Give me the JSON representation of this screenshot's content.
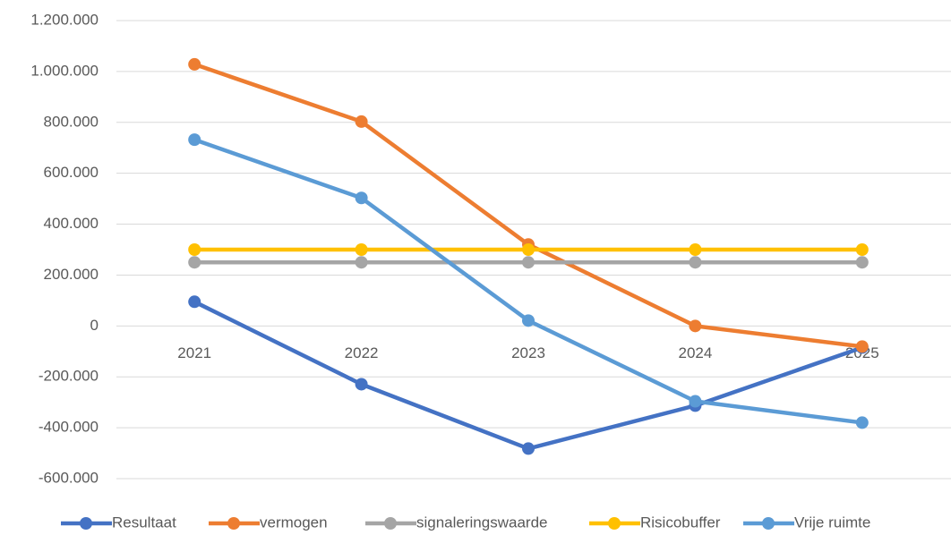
{
  "chart_data": {
    "type": "line",
    "categories": [
      "2021",
      "2022",
      "2023",
      "2024",
      "2025"
    ],
    "series": [
      {
        "name": "Resultaat",
        "color": "#4472c4",
        "values": [
          95000,
          -229000,
          -482000,
          -313000,
          -85000
        ]
      },
      {
        "name": "vermogen",
        "color": "#ed7d31",
        "values": [
          1028000,
          803000,
          320000,
          0,
          -81000
        ]
      },
      {
        "name": "signaleringswaarde",
        "color": "#a5a5a5",
        "values": [
          250000,
          250000,
          250000,
          250000,
          250000
        ]
      },
      {
        "name": "Risicobuffer",
        "color": "#ffc000",
        "values": [
          300000,
          300000,
          300000,
          300000,
          300000
        ]
      },
      {
        "name": "Vrije ruimte",
        "color": "#5b9bd5",
        "values": [
          732000,
          503000,
          21000,
          -296000,
          -380000
        ]
      }
    ],
    "ylim": [
      -600000,
      1200000
    ],
    "yticks": [
      {
        "value": -600000,
        "label": "-600.000"
      },
      {
        "value": -400000,
        "label": "-400.000"
      },
      {
        "value": -200000,
        "label": "-200.000"
      },
      0,
      {
        "value": 200000,
        "label": "200.000"
      },
      {
        "value": 400000,
        "label": "400.000"
      },
      {
        "value": 600000,
        "label": "600.000"
      },
      {
        "value": 800000,
        "label": "800.000"
      },
      {
        "value": 1000000,
        "label": "1.000.000"
      },
      {
        "value": 1200000,
        "label": "1.200.000"
      }
    ],
    "grid": true,
    "legend": "bottom"
  }
}
